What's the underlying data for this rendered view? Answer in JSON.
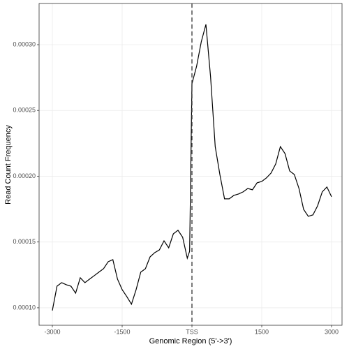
{
  "chart_data": {
    "type": "line",
    "x_label": "Genomic Region (5'->3')",
    "y_label": "Read Count Frequency",
    "x": [
      -3000,
      -2900,
      -2800,
      -2700,
      -2600,
      -2500,
      -2400,
      -2300,
      -2200,
      -2100,
      -2000,
      -1900,
      -1800,
      -1700,
      -1600,
      -1500,
      -1400,
      -1300,
      -1200,
      -1100,
      -1000,
      -900,
      -800,
      -700,
      -600,
      -500,
      -400,
      -300,
      -200,
      -100,
      -50,
      0,
      100,
      200,
      300,
      400,
      500,
      600,
      700,
      800,
      900,
      1000,
      1100,
      1200,
      1300,
      1400,
      1500,
      1600,
      1700,
      1800,
      1900,
      2000,
      2100,
      2200,
      2300,
      2400,
      2500,
      2600,
      2700,
      2800,
      2900,
      3000
    ],
    "series": [
      {
        "color": "#000000",
        "values": [
          9.79e-05,
          0.0001164,
          0.0001191,
          0.0001175,
          0.0001164,
          0.0001111,
          0.0001228,
          0.0001191,
          0.0001218,
          0.0001244,
          0.0001271,
          0.0001297,
          0.000135,
          0.0001366,
          0.0001218,
          0.0001138,
          0.0001085,
          0.0001027,
          0.0001138,
          0.0001271,
          0.0001297,
          0.0001387,
          0.0001419,
          0.000144,
          0.0001509,
          0.0001456,
          0.0001562,
          0.0001589,
          0.0001536,
          0.0001377,
          0.000143,
          0.0002703,
          0.0002836,
          0.0003021,
          0.0003154,
          0.0002756,
          0.0002225,
          0.0002013,
          0.0001828,
          0.0001828,
          0.0001854,
          0.0001865,
          0.0001881,
          0.0001907,
          0.0001897,
          0.000195,
          0.000196,
          0.0001987,
          0.0002024,
          0.0002093,
          0.0002225,
          0.0002172,
          0.000204,
          0.0002013,
          0.0001907,
          0.0001748,
          0.0001695,
          0.0001706,
          0.0001775,
          0.0001881,
          0.0001918,
          0.0001844
        ]
      }
    ],
    "xlim": [
      -3285,
      3225
    ],
    "ylim": [
      8.67e-05,
      0.0003313
    ],
    "xticks": [
      -3000,
      -1500,
      {
        "value": 0,
        "label": "TSS"
      },
      1500,
      3000
    ],
    "yticks": [
      {
        "value": 0.0001,
        "label": "0.00010"
      },
      {
        "value": 0.00015,
        "label": "0.00015"
      },
      {
        "value": 0.0002,
        "label": "0.00020"
      },
      {
        "value": 0.00025,
        "label": "0.00025"
      },
      {
        "value": 0.0003,
        "label": "0.00030"
      }
    ],
    "vline": 0,
    "grid": true
  }
}
